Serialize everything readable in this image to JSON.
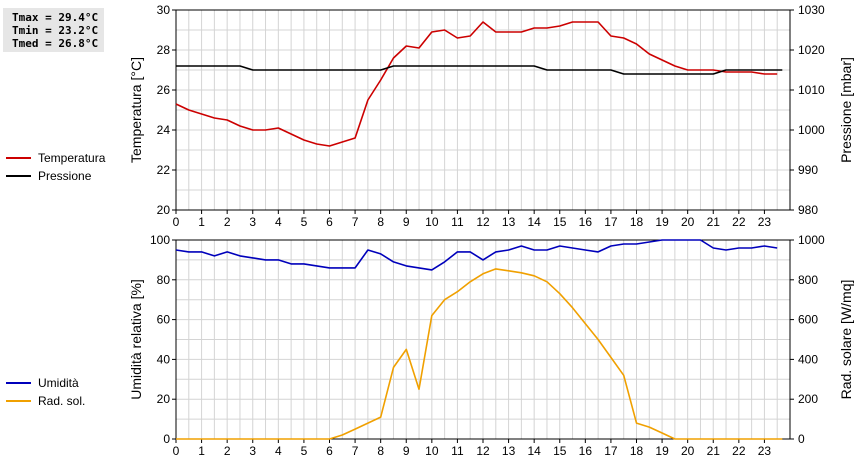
{
  "stats": {
    "tmax": "Tmax = 29.4°C",
    "tmin": "Tmin = 23.2°C",
    "tmed": "Tmed = 26.8°C"
  },
  "chart_data": [
    {
      "type": "line",
      "xlim": [
        0,
        24
      ],
      "xticks": [
        "0",
        "1",
        "2",
        "3",
        "4",
        "5",
        "6",
        "7",
        "8",
        "9",
        "10",
        "11",
        "12",
        "13",
        "14",
        "15",
        "16",
        "17",
        "18",
        "19",
        "20",
        "21",
        "22",
        "23"
      ],
      "ylabel_left": "Temperatura [°C]",
      "ylim_left": [
        20,
        30
      ],
      "yticks_left": [
        "20",
        "22",
        "24",
        "26",
        "28",
        "30"
      ],
      "ylabel_right": "Pressione [mbar]",
      "ylim_right": [
        980,
        1030
      ],
      "yticks_right": [
        "980",
        "990",
        "1000",
        "1010",
        "1020",
        "1030"
      ],
      "grid": true,
      "legend": [
        {
          "label": "Temperatura",
          "color": "#cc0000"
        },
        {
          "label": "Pressione",
          "color": "#000000"
        }
      ],
      "series": [
        {
          "name": "Temperatura",
          "axis": "left",
          "color": "#cc0000",
          "x": [
            0,
            0.5,
            1,
            1.5,
            2,
            2.5,
            3,
            3.5,
            4,
            4.5,
            5,
            5.5,
            6,
            6.5,
            7,
            7.5,
            8,
            8.5,
            9,
            9.5,
            10,
            10.5,
            11,
            11.5,
            12,
            12.5,
            13,
            13.5,
            14,
            14.5,
            15,
            15.5,
            16,
            16.5,
            17,
            17.5,
            18,
            18.5,
            19,
            19.5,
            20,
            20.5,
            21,
            21.5,
            22,
            22.5,
            23,
            23.5
          ],
          "y": [
            25.3,
            25.0,
            24.8,
            24.6,
            24.5,
            24.2,
            24.0,
            24.0,
            24.1,
            23.8,
            23.5,
            23.3,
            23.2,
            23.4,
            23.6,
            25.5,
            26.5,
            27.6,
            28.2,
            28.1,
            28.9,
            29.0,
            28.6,
            28.7,
            29.4,
            28.9,
            28.9,
            28.9,
            29.1,
            29.1,
            29.2,
            29.4,
            29.4,
            29.4,
            28.7,
            28.6,
            28.3,
            27.8,
            27.5,
            27.2,
            27.0,
            27.0,
            27.0,
            26.9,
            26.9,
            26.9,
            26.8,
            26.8
          ]
        },
        {
          "name": "Pressione",
          "axis": "right",
          "color": "#000000",
          "x": [
            0,
            2.5,
            3,
            8,
            8.5,
            14,
            14.5,
            15,
            17,
            17.5,
            21,
            21.5,
            23.7
          ],
          "y": [
            1016,
            1016,
            1015,
            1015,
            1016,
            1016,
            1015,
            1015,
            1015,
            1014,
            1014,
            1015,
            1015
          ]
        }
      ]
    },
    {
      "type": "line",
      "xlim": [
        0,
        24
      ],
      "xticks": [
        "0",
        "1",
        "2",
        "3",
        "4",
        "5",
        "6",
        "7",
        "8",
        "9",
        "10",
        "11",
        "12",
        "13",
        "14",
        "15",
        "16",
        "17",
        "18",
        "19",
        "20",
        "21",
        "22",
        "23"
      ],
      "ylabel_left": "Umidità relativa [%]",
      "ylim_left": [
        0,
        100
      ],
      "yticks_left": [
        "0",
        "20",
        "40",
        "60",
        "80",
        "100"
      ],
      "ylabel_right": "Rad. solare [W/mq]",
      "ylim_right": [
        0,
        1000
      ],
      "yticks_right": [
        "0",
        "200",
        "400",
        "600",
        "800",
        "1000"
      ],
      "grid": true,
      "legend": [
        {
          "label": "Umidità",
          "color": "#0000bb"
        },
        {
          "label": "Rad. sol.",
          "color": "#f0a000"
        }
      ],
      "series": [
        {
          "name": "Umidità",
          "axis": "left",
          "color": "#0000bb",
          "x": [
            0,
            0.5,
            1,
            1.5,
            2,
            2.5,
            3,
            3.5,
            4,
            4.5,
            5,
            5.5,
            6,
            6.5,
            7,
            7.5,
            8,
            8.5,
            9,
            9.5,
            10,
            10.5,
            11,
            11.5,
            12,
            12.5,
            13,
            13.5,
            14,
            14.5,
            15,
            15.5,
            16,
            16.5,
            17,
            17.5,
            18,
            18.5,
            19,
            19.5,
            20,
            20.5,
            21,
            21.5,
            22,
            22.5,
            23,
            23.5
          ],
          "y": [
            95,
            94,
            94,
            92,
            94,
            92,
            91,
            90,
            90,
            88,
            88,
            87,
            86,
            86,
            86,
            95,
            93,
            89,
            87,
            86,
            85,
            89,
            94,
            94,
            90,
            94,
            95,
            97,
            95,
            95,
            97,
            96,
            95,
            94,
            97,
            98,
            98,
            99,
            100,
            100,
            100,
            100,
            96,
            95,
            96,
            96,
            97,
            96
          ]
        },
        {
          "name": "Rad. sol.",
          "axis": "right",
          "color": "#f0a000",
          "x": [
            0,
            6,
            6.5,
            7,
            7.5,
            8,
            8.5,
            9,
            9.5,
            10,
            10.5,
            11,
            11.5,
            12,
            12.5,
            13,
            13.5,
            14,
            14.5,
            15,
            15.5,
            16,
            16.5,
            17,
            17.5,
            18,
            18.5,
            19,
            19.5,
            20,
            23.7
          ],
          "y": [
            0,
            0,
            20,
            50,
            80,
            110,
            360,
            450,
            250,
            620,
            700,
            740,
            790,
            830,
            855,
            845,
            835,
            820,
            790,
            730,
            660,
            580,
            500,
            410,
            320,
            80,
            60,
            30,
            0,
            0,
            0
          ]
        }
      ]
    }
  ]
}
